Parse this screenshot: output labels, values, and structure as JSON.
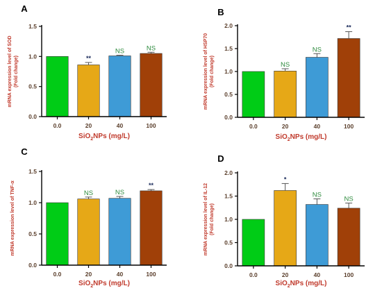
{
  "figure": {
    "panel_letters": [
      "A",
      "B",
      "C",
      "D"
    ]
  },
  "colors": {
    "bars": [
      "#00cc16",
      "#e6a817",
      "#3e9bd6",
      "#a04008"
    ],
    "axis": "#000000",
    "label": "#c0392b",
    "tick_label": "#5a3e2b",
    "ns": "#2e8b3e",
    "star": "#1a2a5a",
    "error_bar": "#555555"
  },
  "chart_data": [
    {
      "type": "bar",
      "panel": "A",
      "categories": [
        "0.0",
        "20",
        "40",
        "100"
      ],
      "values": [
        1.0,
        0.86,
        1.01,
        1.05
      ],
      "errors": [
        0.0,
        0.04,
        0.01,
        0.02
      ],
      "significance": [
        "",
        "**",
        "NS",
        "NS"
      ],
      "ylabel_line1": "mRNA expression level of SOD",
      "ylabel_line2": "(Fold change)",
      "xlabel_pre": "SiO",
      "xlabel_sub": "2",
      "xlabel_post": "NPs (mg/L)",
      "ylim": [
        0,
        1.5
      ],
      "yticks": [
        "0.0",
        "0.5",
        "1.0",
        "1.5"
      ]
    },
    {
      "type": "bar",
      "panel": "B",
      "categories": [
        "0.0",
        "20",
        "40",
        "100"
      ],
      "values": [
        1.0,
        1.01,
        1.31,
        1.72
      ],
      "errors": [
        0.0,
        0.05,
        0.08,
        0.15
      ],
      "significance": [
        "",
        "NS",
        "NS",
        "**"
      ],
      "ylabel_line1": "mRNA expression level of HSP70",
      "ylabel_line2": "(Fold change)",
      "xlabel_pre": "SiO",
      "xlabel_sub": "2",
      "xlabel_post": "NPs (mg/L)",
      "ylim": [
        0,
        2.0
      ],
      "yticks": [
        "0.0",
        "0.5",
        "1.0",
        "1.5",
        "2.0"
      ]
    },
    {
      "type": "bar",
      "panel": "C",
      "categories": [
        "0.0",
        "20",
        "40",
        "100"
      ],
      "values": [
        1.0,
        1.06,
        1.07,
        1.19
      ],
      "errors": [
        0.0,
        0.03,
        0.03,
        0.02
      ],
      "significance": [
        "",
        "NS",
        "NS",
        "**"
      ],
      "ylabel_line1": "mRNA expression level of TNF-α",
      "ylabel_line2": "",
      "xlabel_pre": "SiO",
      "xlabel_sub": "2",
      "xlabel_post": "NPs (mg/L)",
      "ylim": [
        0,
        1.5
      ],
      "yticks": [
        "0.0",
        "0.5",
        "1.0",
        "1.5"
      ]
    },
    {
      "type": "bar",
      "panel": "D",
      "categories": [
        "0.0",
        "20",
        "40",
        "100"
      ],
      "values": [
        1.0,
        1.62,
        1.32,
        1.24
      ],
      "errors": [
        0.0,
        0.15,
        0.12,
        0.11
      ],
      "significance": [
        "",
        "*",
        "NS",
        "NS"
      ],
      "ylabel_line1": "mRNA expression level of IL-12",
      "ylabel_line2": "(Fold change)",
      "xlabel_pre": "SiO",
      "xlabel_sub": "2",
      "xlabel_post": "NPs (mg/L)",
      "ylim": [
        0,
        2.0
      ],
      "yticks": [
        "0.0",
        "0.5",
        "1.0",
        "1.5",
        "2.0"
      ]
    }
  ]
}
